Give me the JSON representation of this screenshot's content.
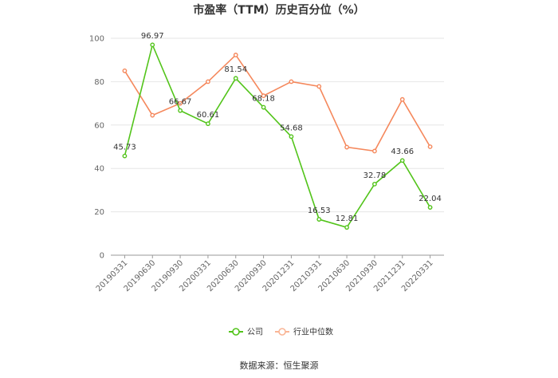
{
  "chart_data": {
    "type": "line",
    "title": "市盈率（TTM）历史百分位（%）",
    "categories": [
      "20190331",
      "20190630",
      "20190930",
      "20200331",
      "20200630",
      "20200930",
      "20201231",
      "20210331",
      "20210630",
      "20210930",
      "20211231",
      "20220331"
    ],
    "ylim": [
      0,
      100
    ],
    "yticks": [
      0,
      20,
      40,
      60,
      80,
      100
    ],
    "grid": true,
    "legend_position": "bottom",
    "series": [
      {
        "name": "公司",
        "color": "#52c41a",
        "values": [
          45.73,
          96.97,
          66.67,
          60.61,
          81.54,
          68.18,
          54.68,
          16.53,
          12.81,
          32.78,
          43.66,
          22.04
        ],
        "labels": [
          "45.73",
          "96.97",
          "66.67",
          "60.61",
          "81.54",
          "68.18",
          "54.68",
          "16.53",
          "12.81",
          "32.78",
          "43.66",
          "22.04"
        ]
      },
      {
        "name": "行业中位数",
        "color": "#f5885c",
        "values": [
          85,
          64.5,
          70,
          80,
          92.3,
          73.5,
          80,
          77.8,
          49.8,
          48,
          71.8,
          50
        ]
      }
    ]
  },
  "source": "数据来源：恒生聚源"
}
